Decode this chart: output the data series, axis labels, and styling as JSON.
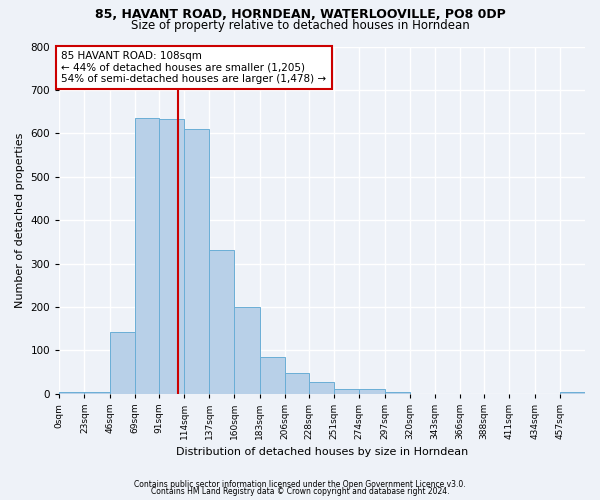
{
  "title1": "85, HAVANT ROAD, HORNDEAN, WATERLOOVILLE, PO8 0DP",
  "title2": "Size of property relative to detached houses in Horndean",
  "xlabel": "Distribution of detached houses by size in Horndean",
  "ylabel": "Number of detached properties",
  "bin_labels": [
    "0sqm",
    "23sqm",
    "46sqm",
    "69sqm",
    "91sqm",
    "114sqm",
    "137sqm",
    "160sqm",
    "183sqm",
    "206sqm",
    "228sqm",
    "251sqm",
    "274sqm",
    "297sqm",
    "320sqm",
    "343sqm",
    "366sqm",
    "388sqm",
    "411sqm",
    "434sqm",
    "457sqm"
  ],
  "bar_values": [
    5,
    5,
    142,
    635,
    632,
    610,
    332,
    200,
    84,
    47,
    28,
    11,
    12,
    5,
    0,
    0,
    0,
    0,
    0,
    0,
    5
  ],
  "bar_color": "#b8d0e8",
  "bar_edge_color": "#6aaed6",
  "property_line_x": 108,
  "bin_edges": [
    0,
    23,
    46,
    69,
    91,
    114,
    137,
    160,
    183,
    206,
    228,
    251,
    274,
    297,
    320,
    343,
    366,
    388,
    411,
    434,
    457,
    480
  ],
  "vline_color": "#cc0000",
  "annotation_line1": "85 HAVANT ROAD: 108sqm",
  "annotation_line2": "← 44% of detached houses are smaller (1,205)",
  "annotation_line3": "54% of semi-detached houses are larger (1,478) →",
  "annotation_box_color": "#ffffff",
  "annotation_box_edge": "#cc0000",
  "ylim": [
    0,
    800
  ],
  "yticks": [
    0,
    100,
    200,
    300,
    400,
    500,
    600,
    700,
    800
  ],
  "footer1": "Contains HM Land Registry data © Crown copyright and database right 2024.",
  "footer2": "Contains public sector information licensed under the Open Government Licence v3.0.",
  "bg_color": "#eef2f8",
  "grid_color": "#ffffff",
  "title_fontsize": 9,
  "subtitle_fontsize": 8.5
}
